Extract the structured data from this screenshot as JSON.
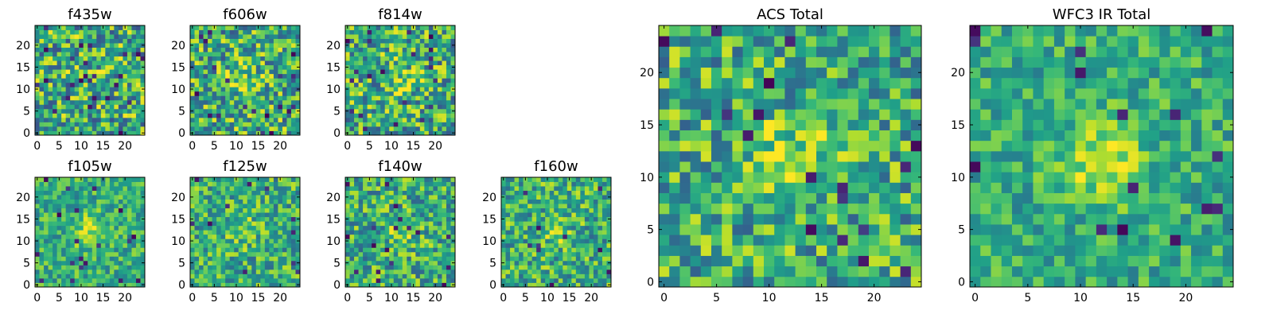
{
  "chart_data": [
    {
      "type": "heatmap",
      "title": "f435w",
      "grid_size": 25,
      "xticks": [
        "0",
        "5",
        "10",
        "15",
        "20"
      ],
      "yticks": [
        "0",
        "5",
        "10",
        "15",
        "20"
      ],
      "noise": 1.0,
      "blob": 0.15,
      "colormap": "viridis",
      "grid": false
    },
    {
      "type": "heatmap",
      "title": "f606w",
      "grid_size": 25,
      "xticks": [
        "0",
        "5",
        "10",
        "15",
        "20"
      ],
      "yticks": [
        "0",
        "5",
        "10",
        "15",
        "20"
      ],
      "noise": 0.95,
      "blob": 0.45,
      "colormap": "viridis",
      "grid": false
    },
    {
      "type": "heatmap",
      "title": "f814w",
      "grid_size": 25,
      "xticks": [
        "0",
        "5",
        "10",
        "15",
        "20"
      ],
      "yticks": [
        "0",
        "5",
        "10",
        "15",
        "20"
      ],
      "noise": 0.95,
      "blob": 0.45,
      "colormap": "viridis",
      "grid": false
    },
    {
      "type": "heatmap",
      "title": "f105w",
      "grid_size": 25,
      "xticks": [
        "0",
        "5",
        "10",
        "15",
        "20"
      ],
      "yticks": [
        "0",
        "5",
        "10",
        "15",
        "20"
      ],
      "noise": 0.6,
      "blob": 0.6,
      "colormap": "viridis",
      "grid": false
    },
    {
      "type": "heatmap",
      "title": "f125w",
      "grid_size": 25,
      "xticks": [
        "0",
        "5",
        "10",
        "15",
        "20"
      ],
      "yticks": [
        "0",
        "5",
        "10",
        "15",
        "20"
      ],
      "noise": 0.75,
      "blob": 0.3,
      "colormap": "viridis",
      "grid": false
    },
    {
      "type": "heatmap",
      "title": "f140w",
      "grid_size": 25,
      "xticks": [
        "0",
        "5",
        "10",
        "15",
        "20"
      ],
      "yticks": [
        "0",
        "5",
        "10",
        "15",
        "20"
      ],
      "noise": 0.8,
      "blob": 0.3,
      "colormap": "viridis",
      "grid": false
    },
    {
      "type": "heatmap",
      "title": "f160w",
      "grid_size": 25,
      "xticks": [
        "0",
        "5",
        "10",
        "15",
        "20"
      ],
      "yticks": [
        "0",
        "5",
        "10",
        "15",
        "20"
      ],
      "noise": 0.8,
      "blob": 0.4,
      "colormap": "viridis",
      "grid": false
    },
    {
      "type": "heatmap",
      "title": "ACS Total",
      "grid_size": 25,
      "xticks": [
        "0",
        "5",
        "10",
        "15",
        "20"
      ],
      "yticks": [
        "0",
        "5",
        "10",
        "15",
        "20"
      ],
      "noise": 0.85,
      "blob": 0.5,
      "colormap": "viridis",
      "grid": false
    },
    {
      "type": "heatmap",
      "title": "WFC3 IR Total",
      "grid_size": 25,
      "xticks": [
        "0",
        "5",
        "10",
        "15",
        "20"
      ],
      "yticks": [
        "0",
        "5",
        "10",
        "15",
        "20"
      ],
      "noise": 0.55,
      "blob": 0.7,
      "colormap": "viridis",
      "grid": false
    }
  ]
}
